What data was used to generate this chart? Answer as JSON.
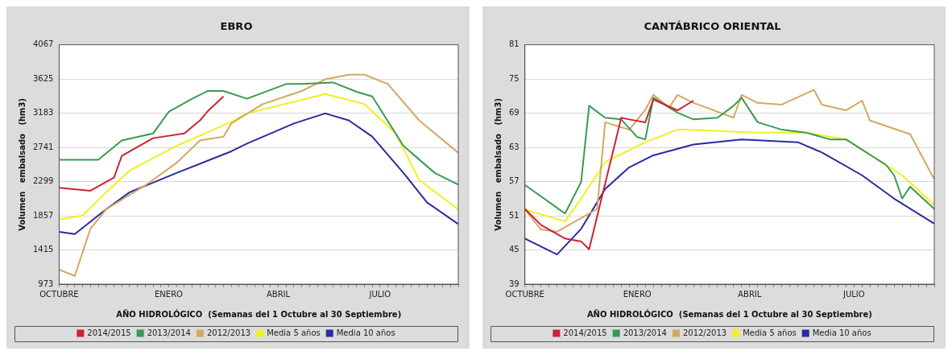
{
  "chart_data": [
    {
      "type": "line",
      "title": "EBRO",
      "xlabel": "AÑO HIDROLÓGICO  (Semanas del 1 Octubre al 30 Septiembre)",
      "ylabel": "Volumen   embalsado   (hm3)",
      "categories": [
        "OCTUBRE",
        null,
        null,
        null,
        null,
        null,
        null,
        null,
        null,
        null,
        null,
        null,
        null,
        null,
        "ENERO",
        null,
        null,
        null,
        null,
        null,
        null,
        null,
        null,
        null,
        null,
        null,
        null,
        null,
        "ABRIL",
        null,
        null,
        null,
        null,
        null,
        null,
        null,
        null,
        null,
        null,
        null,
        null,
        "JULIO",
        null,
        null,
        null,
        null,
        null,
        null,
        null,
        null,
        null,
        null
      ],
      "ylim": [
        973,
        4067
      ],
      "yticks": [
        973,
        1415,
        1857,
        2299,
        2741,
        3183,
        3625,
        4067
      ],
      "grid": "y",
      "legend": "bottom",
      "marker": "none",
      "line_style": "solid",
      "series": [
        {
          "name": "2014/2015",
          "color": "#cc2233",
          "values": [
            2220,
            null,
            null,
            null,
            2180,
            null,
            null,
            2350,
            2630,
            null,
            null,
            null,
            2860,
            null,
            null,
            null,
            2920,
            null,
            3090,
            3210,
            null,
            3400,
            null,
            null,
            null,
            null,
            null,
            null,
            null,
            null,
            null,
            null,
            null,
            null,
            null,
            null,
            null,
            null,
            null,
            null,
            null,
            null,
            null,
            null,
            null,
            null,
            null,
            null,
            null,
            null,
            null,
            null
          ]
        },
        {
          "name": "2013/2014",
          "color": "#3a9a50",
          "values": [
            2580,
            null,
            null,
            null,
            null,
            2580,
            null,
            null,
            2830,
            null,
            null,
            null,
            2920,
            null,
            3200,
            null,
            null,
            3370,
            null,
            3470,
            null,
            3470,
            null,
            null,
            3370,
            null,
            null,
            null,
            null,
            3560,
            null,
            3560,
            null,
            null,
            null,
            3580,
            null,
            null,
            3460,
            null,
            3400,
            null,
            null,
            null,
            2760,
            null,
            null,
            null,
            2410,
            null,
            null,
            2260
          ]
        },
        {
          "name": "2012/2013",
          "color": "#d4a860",
          "values": [
            1160,
            null,
            1080,
            null,
            1690,
            null,
            1940,
            null,
            null,
            null,
            null,
            2250,
            null,
            null,
            null,
            2540,
            null,
            null,
            2830,
            null,
            null,
            2880,
            3050,
            null,
            null,
            null,
            3300,
            null,
            null,
            null,
            null,
            3470,
            null,
            null,
            3620,
            null,
            null,
            3680,
            null,
            3680,
            null,
            null,
            3560,
            null,
            null,
            null,
            3090,
            null,
            null,
            null,
            null,
            2670
          ]
        },
        {
          "name": "Media 5 años",
          "color": "#f0f020",
          "values": [
            1810,
            null,
            null,
            1860,
            null,
            null,
            2160,
            null,
            null,
            2440,
            null,
            null,
            null,
            null,
            null,
            2760,
            null,
            null,
            null,
            null,
            null,
            null,
            3070,
            null,
            3180,
            null,
            null,
            null,
            null,
            null,
            3330,
            null,
            null,
            null,
            3430,
            null,
            null,
            null,
            null,
            3300,
            null,
            null,
            null,
            2920,
            null,
            null,
            2320,
            null,
            null,
            null,
            null,
            1940
          ]
        },
        {
          "name": "Media 10 años",
          "color": "#2a2aa0",
          "values": [
            1650,
            null,
            1620,
            null,
            null,
            null,
            1940,
            null,
            null,
            2160,
            null,
            null,
            null,
            null,
            null,
            2410,
            null,
            null,
            null,
            null,
            null,
            null,
            2690,
            null,
            2790,
            null,
            null,
            null,
            null,
            null,
            3050,
            null,
            null,
            null,
            3180,
            null,
            null,
            3090,
            null,
            null,
            2880,
            null,
            null,
            null,
            2410,
            null,
            null,
            2030,
            null,
            null,
            null,
            1750
          ]
        }
      ]
    },
    {
      "type": "line",
      "title": "CANTÁBRICO ORIENTAL",
      "xlabel": "AÑO HIDROLÓGICO  (Semanas del 1 Octubre al 30 Septiembre)",
      "ylabel": "Volumen   embalsado   (hm3)",
      "categories": [
        "OCTUBRE",
        null,
        null,
        null,
        null,
        null,
        null,
        null,
        null,
        null,
        null,
        null,
        null,
        null,
        "ENERO",
        null,
        null,
        null,
        null,
        null,
        null,
        null,
        null,
        null,
        null,
        null,
        null,
        null,
        "ABRIL",
        null,
        null,
        null,
        null,
        null,
        null,
        null,
        null,
        null,
        null,
        null,
        null,
        "JULIO",
        null,
        null,
        null,
        null,
        null,
        null,
        null,
        null,
        null,
        null
      ],
      "ylim": [
        39,
        81
      ],
      "yticks": [
        39,
        45,
        51,
        57,
        63,
        69,
        75,
        81
      ],
      "grid": "y",
      "legend": "bottom",
      "marker": "none",
      "line_style": "solid",
      "series": [
        {
          "name": "2014/2015",
          "color": "#cc2233",
          "values": [
            52.2,
            null,
            49.4,
            null,
            null,
            47,
            null,
            46.5,
            45.1,
            null,
            null,
            null,
            68.2,
            67.9,
            null,
            67.4,
            71.4,
            null,
            null,
            69.5,
            null,
            71.2,
            null,
            null,
            null,
            null,
            null,
            null,
            null,
            null,
            null,
            null,
            null,
            null,
            null,
            null,
            null,
            null,
            null,
            null,
            null,
            null,
            null,
            null,
            null,
            null,
            null,
            null,
            null,
            null,
            null,
            null
          ]
        },
        {
          "name": "2013/2014",
          "color": "#3a9a50",
          "values": [
            56.4,
            null,
            null,
            null,
            null,
            51.4,
            null,
            56.9,
            70.3,
            null,
            68.2,
            null,
            67.9,
            null,
            64.8,
            64.4,
            71.7,
            null,
            null,
            69.1,
            null,
            67.9,
            null,
            null,
            68.2,
            null,
            70.3,
            71.7,
            null,
            67.4,
            null,
            null,
            66.1,
            null,
            null,
            65.6,
            null,
            null,
            64.4,
            null,
            64.4,
            null,
            null,
            null,
            null,
            59.9,
            58.1,
            54,
            56.1,
            null,
            null,
            52.2
          ]
        },
        {
          "name": "2012/2013",
          "color": "#d4a860",
          "values": [
            52.1,
            null,
            48.6,
            null,
            48.2,
            null,
            null,
            null,
            null,
            52.2,
            67.4,
            null,
            null,
            66.1,
            null,
            69.6,
            72.2,
            null,
            70,
            72.2,
            null,
            70.8,
            70.3,
            null,
            null,
            null,
            68.2,
            72.2,
            null,
            70.8,
            null,
            null,
            70.5,
            null,
            null,
            null,
            73.1,
            70.5,
            null,
            null,
            69.5,
            null,
            71.2,
            67.7,
            null,
            null,
            null,
            null,
            65.3,
            null,
            null,
            57.4
          ]
        },
        {
          "name": "Media 5 años",
          "color": "#f0f020",
          "values": [
            52.1,
            null,
            null,
            null,
            null,
            50,
            null,
            54,
            null,
            null,
            60.4,
            null,
            null,
            null,
            null,
            63.9,
            null,
            null,
            null,
            66.1,
            66.1,
            null,
            null,
            null,
            null,
            null,
            null,
            null,
            null,
            65.6,
            null,
            null,
            null,
            null,
            null,
            65.6,
            null,
            null,
            null,
            null,
            64.4,
            null,
            null,
            null,
            null,
            null,
            null,
            58.1,
            null,
            null,
            null,
            52.9
          ]
        },
        {
          "name": "Media 10 años",
          "color": "#2a2aa0",
          "values": [
            47,
            null,
            null,
            null,
            44.2,
            null,
            null,
            48.7,
            null,
            null,
            55.7,
            null,
            null,
            59.5,
            null,
            null,
            61.6,
            null,
            null,
            null,
            null,
            63.5,
            null,
            null,
            null,
            null,
            null,
            64.4,
            null,
            null,
            null,
            null,
            null,
            null,
            63.9,
            null,
            null,
            62.1,
            null,
            null,
            null,
            null,
            58.1,
            null,
            null,
            null,
            54,
            null,
            null,
            null,
            null,
            49.6
          ]
        }
      ]
    }
  ]
}
